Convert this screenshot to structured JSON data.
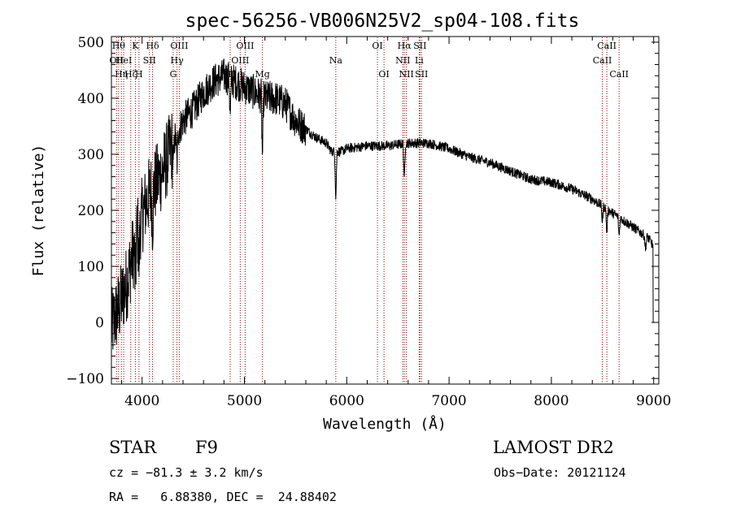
{
  "chart_data": {
    "type": "line",
    "title": "spec-56256-VB006N25V2_sp04-108.fits",
    "xlabel": "Wavelength (Å)",
    "ylabel": "Flux (relative)",
    "xlim": [
      3700,
      9050
    ],
    "ylim": [
      -110,
      510
    ],
    "xticks": [
      4000,
      5000,
      6000,
      7000,
      8000,
      9000
    ],
    "yticks": [
      -100,
      0,
      100,
      200,
      300,
      400,
      500
    ],
    "line_color": "#000000",
    "marker_color": "#8b0000",
    "spectral_lines": [
      {
        "wavelength": 3750,
        "label": "OII",
        "row": 1
      },
      {
        "wavelength": 3770,
        "label": "Hθ",
        "row": 0
      },
      {
        "wavelength": 3797,
        "label": "Hη",
        "row": 2
      },
      {
        "wavelength": 3820,
        "label": "HeI",
        "row": 1
      },
      {
        "wavelength": 3889,
        "label": "Hζ",
        "row": 2
      },
      {
        "wavelength": 3934,
        "label": "K",
        "row": 0
      },
      {
        "wavelength": 3969,
        "label": "H",
        "row": 2
      },
      {
        "wavelength": 4072,
        "label": "SII",
        "row": 1
      },
      {
        "wavelength": 4102,
        "label": "Hδ",
        "row": 0
      },
      {
        "wavelength": 4304,
        "label": "G",
        "row": 2
      },
      {
        "wavelength": 4341,
        "label": "Hγ",
        "row": 1
      },
      {
        "wavelength": 4363,
        "label": "OIII",
        "row": 0
      },
      {
        "wavelength": 4861,
        "label": "Hβ",
        "row": 2
      },
      {
        "wavelength": 4959,
        "label": "OIII",
        "row": 1
      },
      {
        "wavelength": 5007,
        "label": "OIII",
        "row": 0
      },
      {
        "wavelength": 5176,
        "label": "Mg",
        "row": 2
      },
      {
        "wavelength": 5893,
        "label": "Na",
        "row": 1
      },
      {
        "wavelength": 6300,
        "label": "OI",
        "row": 0
      },
      {
        "wavelength": 6364,
        "label": "OI",
        "row": 2
      },
      {
        "wavelength": 6548,
        "label": "NII",
        "row": 1
      },
      {
        "wavelength": 6563,
        "label": "Hα",
        "row": 0
      },
      {
        "wavelength": 6583,
        "label": "NII",
        "row": 2
      },
      {
        "wavelength": 6708,
        "label": "Li",
        "row": 1
      },
      {
        "wavelength": 6716,
        "label": "SII",
        "row": 0
      },
      {
        "wavelength": 6731,
        "label": "SII",
        "row": 2
      },
      {
        "wavelength": 8498,
        "label": "CaII",
        "row": 1
      },
      {
        "wavelength": 8542,
        "label": "CaII",
        "row": 0
      },
      {
        "wavelength": 8662,
        "label": "CaII",
        "row": 2
      }
    ],
    "continuum": [
      [
        3700,
        -10
      ],
      [
        3780,
        30
      ],
      [
        3850,
        70
      ],
      [
        3950,
        160
      ],
      [
        4050,
        220
      ],
      [
        4200,
        270
      ],
      [
        4300,
        320
      ],
      [
        4400,
        360
      ],
      [
        4500,
        380
      ],
      [
        4600,
        410
      ],
      [
        4700,
        430
      ],
      [
        4800,
        440
      ],
      [
        4900,
        430
      ],
      [
        5000,
        420
      ],
      [
        5100,
        410
      ],
      [
        5200,
        400
      ],
      [
        5300,
        400
      ],
      [
        5400,
        390
      ],
      [
        5500,
        360
      ],
      [
        5600,
        345
      ],
      [
        5700,
        330
      ],
      [
        5800,
        320
      ],
      [
        5850,
        305
      ],
      [
        5950,
        305
      ],
      [
        6000,
        310
      ],
      [
        6200,
        315
      ],
      [
        6400,
        315
      ],
      [
        6600,
        320
      ],
      [
        6800,
        320
      ],
      [
        7000,
        310
      ],
      [
        7200,
        295
      ],
      [
        7400,
        285
      ],
      [
        7600,
        270
      ],
      [
        7800,
        255
      ],
      [
        8000,
        250
      ],
      [
        8200,
        238
      ],
      [
        8400,
        220
      ],
      [
        8600,
        195
      ],
      [
        8800,
        170
      ],
      [
        8950,
        150
      ],
      [
        9000,
        135
      ]
    ],
    "absorption": [
      {
        "wavelength": 3934,
        "depth": 80
      },
      {
        "wavelength": 3969,
        "depth": 70
      },
      {
        "wavelength": 4102,
        "depth": 60
      },
      {
        "wavelength": 4304,
        "depth": 50
      },
      {
        "wavelength": 4341,
        "depth": 60
      },
      {
        "wavelength": 4861,
        "depth": 70
      },
      {
        "wavelength": 5176,
        "depth": 110
      },
      {
        "wavelength": 5893,
        "depth": 90
      },
      {
        "wavelength": 6563,
        "depth": 70
      },
      {
        "wavelength": 8498,
        "depth": 30
      },
      {
        "wavelength": 8542,
        "depth": 45
      },
      {
        "wavelength": 8662,
        "depth": 35
      },
      {
        "wavelength": 8920,
        "depth": 25
      }
    ]
  },
  "info": {
    "object_class": "STAR",
    "subclass": "F9",
    "survey": "LAMOST DR2",
    "redshift": "cz = −81.3 ± 3.2 km/s",
    "obs_date": "Obs−Date: 20121124",
    "coords": "RA =   6.88380, DEC =  24.88402"
  }
}
